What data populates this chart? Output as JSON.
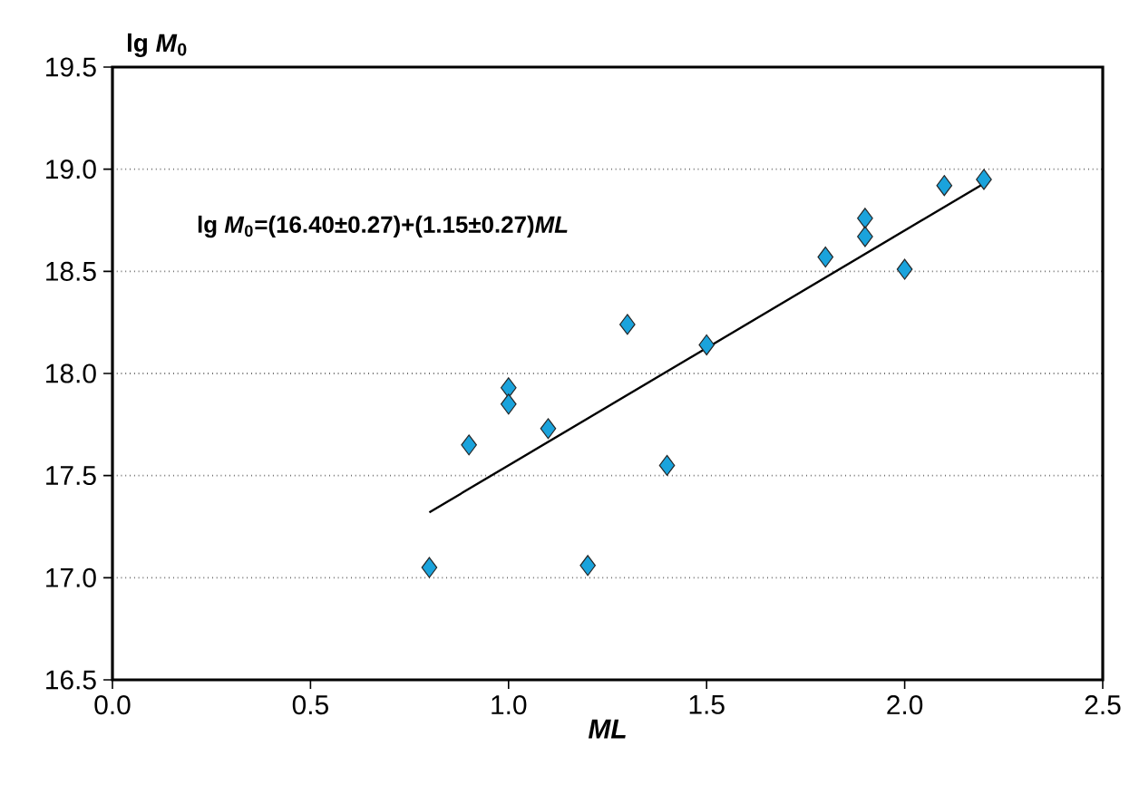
{
  "chart_data": {
    "type": "scatter",
    "xlabel": "ML",
    "ylabel": "lg *M*$_{0}$",
    "annotations": [
      "lg *M*$_{0}$=(16.40±0.27)+(1.15±0.27)*ML*"
    ],
    "series": [
      {
        "color": "#1aa3dc",
        "marker": "diamond",
        "x": [
          0.8,
          0.9,
          1.0,
          1.0,
          1.1,
          1.2,
          1.3,
          1.4,
          1.5,
          1.8,
          1.9,
          1.9,
          2.0,
          2.1,
          2.2
        ],
        "values": [
          17.05,
          17.65,
          17.93,
          17.85,
          17.73,
          17.06,
          18.24,
          17.55,
          18.14,
          18.57,
          18.76,
          18.67,
          18.51,
          18.92,
          18.95
        ]
      },
      {
        "type": "line",
        "color": "#000000",
        "marker": "none",
        "line_style": "solid",
        "x": [
          0.8,
          2.2
        ],
        "values": [
          17.32,
          18.93
        ]
      }
    ],
    "xlim": [
      0,
      2.5
    ],
    "ylim": [
      16.5,
      19.5
    ],
    "xticks": [
      {
        "value": 0,
        "label": "0.0"
      },
      0.5,
      {
        "value": 1,
        "label": "1.0"
      },
      1.5,
      {
        "value": 2,
        "label": "2.0"
      },
      2.5
    ],
    "yticks": [
      16.5,
      {
        "value": 17,
        "label": "17.0"
      },
      17.5,
      {
        "value": 18,
        "label": "18.0"
      },
      18.5,
      {
        "value": 19,
        "label": "19.0"
      },
      19.5
    ],
    "grid": "y"
  }
}
